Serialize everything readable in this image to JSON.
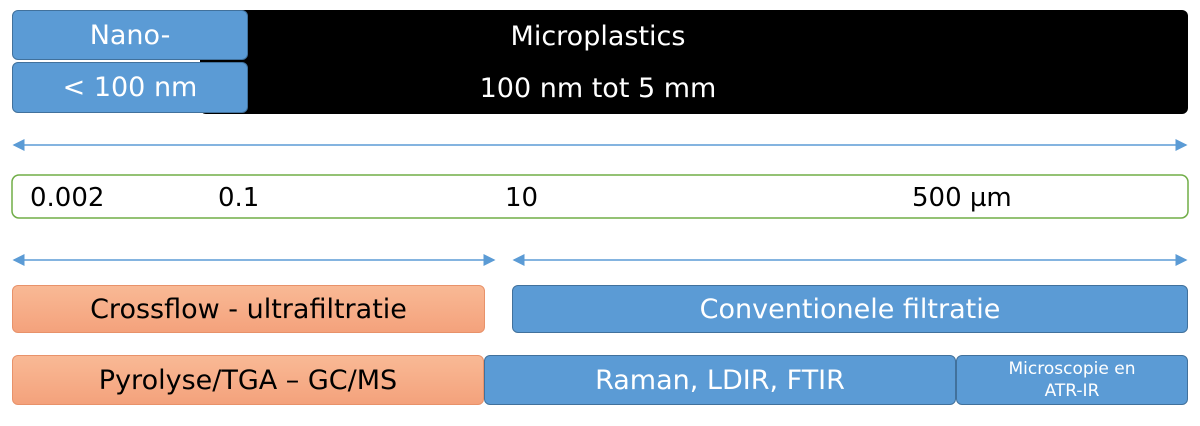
{
  "size_classes": {
    "row1": {
      "nano": "Nano-",
      "micro": "Microplastics"
    },
    "row2": {
      "nano": "< 100 nm",
      "micro": "100 nm tot 5 mm"
    }
  },
  "scale": [
    "0.002",
    "0.1",
    "10",
    "500 µm"
  ],
  "separation": {
    "left": "Crossflow - ultrafiltratie",
    "right": "Conventionele filtratie"
  },
  "analysis": {
    "left": "Pyrolyse/TGA – GC/MS",
    "middle": "Raman, LDIR, FTIR",
    "right": [
      "Microscopie en",
      "ATR-IR"
    ]
  }
}
